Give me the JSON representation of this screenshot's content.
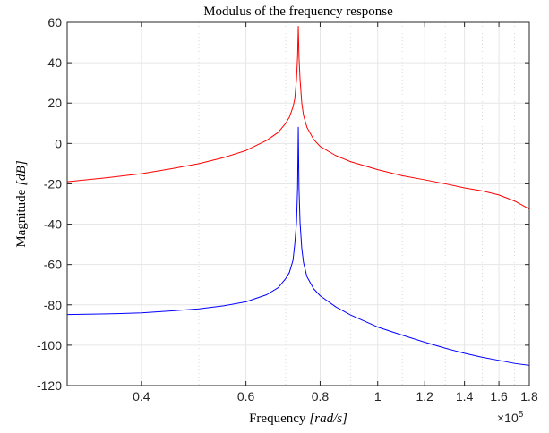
{
  "chart_data": {
    "type": "line",
    "title": "Modulus of the frequency response",
    "xlabel": "Frequency",
    "xlabel_unit": "[rad/s]",
    "ylabel": "Magnitude",
    "ylabel_unit": "[dB]",
    "x_scale": "log",
    "x_multiplier_label": "×10",
    "x_multiplier_exp": "5",
    "xlim": [
      0.3,
      1.8
    ],
    "ylim": [
      -120,
      60
    ],
    "grid": true,
    "x_ticks": [
      0.4,
      0.6,
      0.8,
      1,
      1.2,
      1.4,
      1.6,
      1.8
    ],
    "x_tick_labels": [
      "0.4",
      "0.6",
      "0.8",
      "1",
      "1.2",
      "1.4",
      "1.6",
      "1.8"
    ],
    "y_ticks": [
      60,
      40,
      20,
      0,
      -20,
      -40,
      -60,
      -80,
      -100,
      -120
    ],
    "y_tick_labels": [
      "60",
      "40",
      "20",
      "0",
      "-20",
      "-40",
      "-60",
      "-80",
      "-100",
      "-120"
    ],
    "minor_x_grid": [
      0.3,
      0.5,
      0.7,
      0.9,
      1.1,
      1.3,
      1.5,
      1.7
    ],
    "resonance_x": 0.735,
    "series": [
      {
        "color": "#ff0000",
        "x": [
          0.3,
          0.35,
          0.4,
          0.45,
          0.5,
          0.55,
          0.6,
          0.65,
          0.68,
          0.7,
          0.71,
          0.72,
          0.725,
          0.73,
          0.733,
          0.735,
          0.737,
          0.74,
          0.745,
          0.75,
          0.76,
          0.78,
          0.8,
          0.85,
          0.9,
          1.0,
          1.1,
          1.2,
          1.3,
          1.4,
          1.5,
          1.6,
          1.7,
          1.8
        ],
        "y": [
          -19,
          -17,
          -15,
          -12.5,
          -10,
          -7,
          -3.5,
          1.5,
          5.5,
          10,
          13,
          18,
          22,
          32,
          43,
          58,
          43,
          32,
          20,
          14,
          8,
          2,
          -1.5,
          -6,
          -9,
          -13,
          -16,
          -18,
          -20,
          -22,
          -23.5,
          -25.5,
          -28.5,
          -32.5
        ]
      },
      {
        "color": "#0000ff",
        "x": [
          0.3,
          0.35,
          0.4,
          0.45,
          0.5,
          0.55,
          0.6,
          0.65,
          0.68,
          0.7,
          0.71,
          0.72,
          0.725,
          0.73,
          0.733,
          0.735,
          0.737,
          0.74,
          0.745,
          0.75,
          0.76,
          0.78,
          0.8,
          0.85,
          0.9,
          1.0,
          1.1,
          1.2,
          1.3,
          1.4,
          1.5,
          1.6,
          1.7,
          1.8
        ],
        "y": [
          -84.8,
          -84.5,
          -84,
          -83,
          -82,
          -80.5,
          -78.5,
          -75,
          -71.5,
          -67,
          -64,
          -58,
          -50,
          -39,
          -22,
          8,
          -22,
          -39,
          -52,
          -59,
          -66,
          -72,
          -75.5,
          -81,
          -85,
          -91,
          -95,
          -98.5,
          -101.5,
          -104,
          -106,
          -107.5,
          -109,
          -110
        ]
      }
    ]
  }
}
